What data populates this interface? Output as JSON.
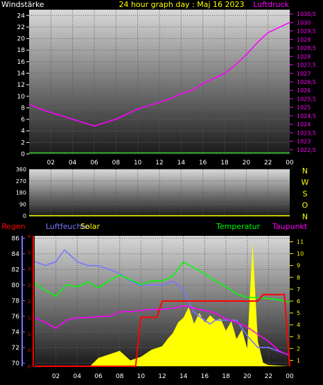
{
  "colors": {
    "background": "#000000",
    "wind": "#ffffff",
    "pressure": "#ff00ff",
    "title": "#ffff00",
    "humidity": "#7777ff",
    "solar": "#ffff00",
    "temperature": "#00ff00",
    "dewpoint": "#ff00ff",
    "rain": "#ff0000",
    "windline": "#33cc33"
  },
  "chart_data": [
    {
      "type": "line",
      "title": "24 hour graph day : Maj 16 2023",
      "left_axis_title": "Windstärke",
      "right_axis_title": "Luftdruck",
      "x_ticks": [
        "02",
        "04",
        "06",
        "08",
        "10",
        "12",
        "14",
        "16",
        "18",
        "20",
        "22",
        "00"
      ],
      "left_ticks": [
        "0",
        "2",
        "4",
        "6",
        "8",
        "10",
        "12",
        "14",
        "16",
        "18",
        "20",
        "22",
        "24"
      ],
      "left_ylim": [
        0,
        25
      ],
      "right_ticks": [
        "1022,5",
        "1023",
        "1023,5",
        "1024",
        "1024,5",
        "1025",
        "1025,5",
        "1026",
        "1026,5",
        "1027",
        "1027,5",
        "1028",
        "1028,5",
        "1029",
        "1029,5",
        "1030",
        "1030,5"
      ],
      "right_ylim": [
        1022.25,
        1030.75
      ],
      "grid": true,
      "series": [
        {
          "name": "Luftdruck",
          "axis": "right",
          "x": [
            0,
            1,
            2,
            3,
            4,
            5,
            6,
            7,
            8,
            9,
            10,
            11,
            12,
            13,
            14,
            15,
            16,
            17,
            18,
            19,
            20,
            21,
            22,
            23,
            24
          ],
          "values": [
            1025.2,
            1024.9,
            1024.7,
            1024.5,
            1024.3,
            1024.1,
            1023.9,
            1024.1,
            1024.3,
            1024.6,
            1024.9,
            1025.1,
            1025.3,
            1025.5,
            1025.8,
            1026.0,
            1026.4,
            1026.7,
            1027.0,
            1027.5,
            1028.1,
            1028.8,
            1029.4,
            1029.7,
            1030.0
          ]
        },
        {
          "name": "Windstärke",
          "axis": "left",
          "x": [
            0,
            24
          ],
          "values": [
            0.2,
            0.2
          ]
        }
      ]
    },
    {
      "type": "line",
      "left_ticks": [
        "0",
        "90",
        "180",
        "270",
        "360"
      ],
      "left_ylim": [
        0,
        360
      ],
      "compass_labels": [
        "N",
        "W",
        "S",
        "O",
        "N"
      ],
      "grid": true,
      "series": []
    },
    {
      "type": "line",
      "labels": {
        "rain": "Regen",
        "humidity": "Luftfeuchte",
        "solar": "Solar",
        "temperature": "Temperatur",
        "dewpoint": "Taupunkt"
      },
      "left_ticks": [
        "70",
        "72",
        "74",
        "76",
        "78",
        "80",
        "82",
        "84",
        "86"
      ],
      "left_ylim": [
        69.6,
        86.3
      ],
      "rain_ticks": [
        "0",
        "0",
        "1",
        "1",
        "2",
        "2",
        "3",
        "3",
        "4"
      ],
      "rain_ylim": [
        0,
        4
      ],
      "right_ticks": [
        "1",
        "2",
        "3",
        "4",
        "5",
        "6",
        "7",
        "8",
        "9",
        "10",
        "11"
      ],
      "right_ylim": [
        0.5,
        11.5
      ],
      "x_ticks": [
        "02",
        "04",
        "06",
        "08",
        "10",
        "12",
        "14",
        "16",
        "18",
        "20",
        "22",
        "00"
      ],
      "grid": true,
      "series": [
        {
          "name": "Luftfeuchte",
          "axis": "left",
          "x": [
            0,
            1,
            2,
            2.8,
            3.2,
            4,
            5,
            6,
            7,
            8,
            9,
            10,
            11,
            12,
            13,
            14,
            15,
            16,
            16.5,
            17,
            18,
            19,
            20,
            21,
            22,
            23,
            24
          ],
          "values": [
            83,
            82.5,
            83,
            84.5,
            84,
            83,
            82.5,
            82.5,
            82,
            81.5,
            80.5,
            80,
            80,
            80,
            80.5,
            79.5,
            76.5,
            75.5,
            75,
            75.5,
            75.5,
            75.5,
            73.5,
            72,
            72,
            71.5,
            71
          ]
        },
        {
          "name": "Temperatur",
          "axis": "right",
          "x": [
            0,
            1,
            2,
            3,
            4,
            5,
            6,
            7,
            8,
            9,
            10,
            11,
            12,
            13,
            14,
            15,
            16,
            17,
            18,
            19,
            20,
            21,
            22,
            23,
            24
          ],
          "values": [
            7.5,
            6.9,
            6.4,
            7.4,
            7.2,
            7.6,
            7.1,
            7.7,
            8.2,
            7.8,
            7.4,
            7.7,
            7.7,
            8.1,
            9.3,
            8.8,
            8.3,
            7.7,
            7.2,
            6.6,
            6.3,
            6.3,
            6.2,
            6.1,
            5.9
          ]
        },
        {
          "name": "Taupunkt",
          "axis": "right",
          "x": [
            0,
            1,
            2,
            3,
            4,
            5,
            6,
            7,
            8,
            9,
            10,
            11,
            12,
            13,
            14,
            15,
            16,
            17,
            18,
            19,
            20,
            21,
            22,
            23,
            24
          ],
          "values": [
            4.6,
            4.2,
            3.7,
            4.4,
            4.6,
            4.6,
            4.7,
            4.7,
            5.1,
            5.1,
            5.2,
            5.3,
            5.3,
            5.4,
            5.6,
            5.4,
            5.2,
            5.0,
            4.5,
            4.2,
            3.8,
            3.2,
            2.6,
            1.8,
            1.4
          ]
        },
        {
          "name": "Solar",
          "axis": "right",
          "x": [
            5.2,
            6,
            7,
            8,
            9,
            10,
            11,
            12,
            12.5,
            13,
            13.5,
            14,
            14.5,
            15,
            15.5,
            16,
            16.5,
            17,
            17.5,
            18,
            18.5,
            19,
            19.5,
            20,
            20.5,
            21,
            21.5,
            22,
            24
          ],
          "values": [
            0.5,
            1.2,
            1.5,
            1.8,
            1.0,
            1.3,
            1.9,
            2.2,
            2.8,
            3.3,
            4.2,
            4.6,
            5.5,
            4.1,
            5.0,
            4.2,
            4.8,
            4.4,
            4.5,
            3.5,
            4.3,
            2.8,
            3.6,
            2.0,
            10.9,
            2.6,
            0.8,
            0.6,
            0.5
          ]
        },
        {
          "name": "Regen",
          "axis": "rain",
          "x": [
            0,
            9,
            9.5,
            10,
            11.5,
            12,
            20.5,
            21,
            21.5,
            23.5,
            24
          ],
          "values": [
            0,
            0,
            0,
            1.5,
            1.5,
            2.0,
            2.0,
            2.0,
            2.2,
            2.2,
            0
          ]
        }
      ]
    }
  ]
}
